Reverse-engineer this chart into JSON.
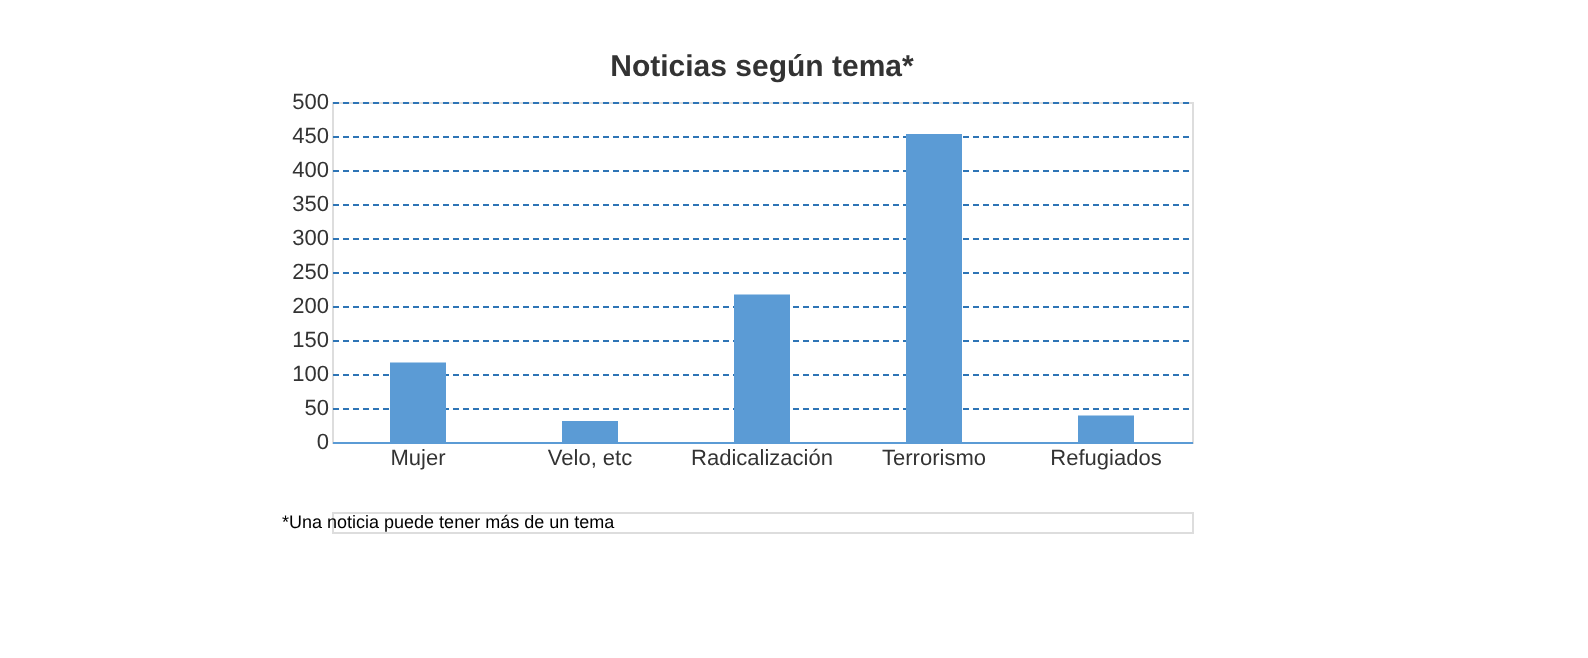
{
  "chart_data": {
    "type": "bar",
    "title": "Noticias según tema*",
    "categories": [
      "Mujer",
      "Velo, etc",
      "Radicalización",
      "Terrorismo",
      "Refugiados"
    ],
    "values": [
      117,
      31,
      217,
      453,
      39
    ],
    "color": "#5b9bd5",
    "ylim": [
      0,
      500
    ],
    "yticks": [
      0,
      50,
      100,
      150,
      200,
      250,
      300,
      350,
      400,
      450,
      500
    ],
    "grid": "y",
    "annotations": [
      "*Una noticia puede tener más de un tema"
    ]
  }
}
